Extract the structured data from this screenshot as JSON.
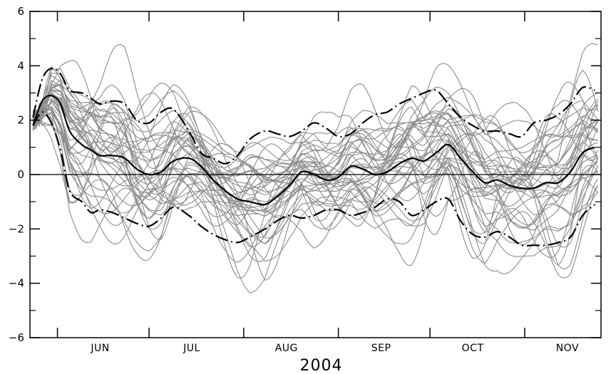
{
  "chart_data": {
    "type": "line",
    "title": "",
    "xlabel": "2004",
    "ylabel": "",
    "xlim": [
      "2004-05-23",
      "2004-11-26"
    ],
    "ylim": [
      -6,
      6
    ],
    "yticks": [
      -6,
      -4,
      -2,
      0,
      2,
      4,
      6
    ],
    "ytick_labels": [
      "−6",
      "−4",
      "−2",
      "0",
      "2",
      "4",
      "6"
    ],
    "month_ticks": [
      "2004-06-01",
      "2004-07-01",
      "2004-08-01",
      "2004-09-01",
      "2004-10-01",
      "2004-11-01"
    ],
    "month_labels": [
      {
        "label": "JUN",
        "date": "2004-06-15"
      },
      {
        "label": "JUL",
        "date": "2004-07-15"
      },
      {
        "label": "AUG",
        "date": "2004-08-15"
      },
      {
        "label": "SEP",
        "date": "2004-09-15"
      },
      {
        "label": "OCT",
        "date": "2004-10-15"
      },
      {
        "label": "NOV",
        "date": "2004-11-15"
      }
    ],
    "zero_line": 0,
    "grid": false,
    "legend": "none",
    "colors": {
      "ensemble": "#8c8c8c",
      "summary": "#000000"
    },
    "series": [
      {
        "role": "upper-band",
        "style": "dash-dot",
        "x": [
          "2004-05-24",
          "2004-05-27",
          "2004-05-30",
          "2004-06-02",
          "2004-06-05",
          "2004-06-09",
          "2004-06-12",
          "2004-06-15",
          "2004-06-19",
          "2004-06-23",
          "2004-06-27",
          "2004-07-01",
          "2004-07-05",
          "2004-07-09",
          "2004-07-14",
          "2004-07-18",
          "2004-07-22",
          "2004-07-26",
          "2004-07-30",
          "2004-08-03",
          "2004-08-08",
          "2004-08-12",
          "2004-08-16",
          "2004-08-20",
          "2004-08-24",
          "2004-08-28",
          "2004-09-01",
          "2004-09-05",
          "2004-09-09",
          "2004-09-13",
          "2004-09-17",
          "2004-09-21",
          "2004-09-25",
          "2004-09-29",
          "2004-10-03",
          "2004-10-07",
          "2004-10-11",
          "2004-10-15",
          "2004-10-19",
          "2004-10-23",
          "2004-10-27",
          "2004-10-31",
          "2004-11-04",
          "2004-11-08",
          "2004-11-12",
          "2004-11-16",
          "2004-11-20",
          "2004-11-24"
        ],
        "y": [
          2.1,
          3.5,
          3.9,
          3.7,
          3.1,
          3.0,
          2.8,
          2.6,
          2.7,
          2.6,
          2.0,
          1.9,
          2.3,
          2.4,
          1.6,
          0.8,
          0.6,
          0.4,
          0.7,
          1.3,
          1.6,
          1.5,
          1.4,
          1.6,
          1.9,
          1.7,
          1.4,
          1.5,
          1.9,
          2.2,
          2.3,
          2.6,
          2.8,
          3.0,
          3.1,
          2.6,
          2.1,
          1.8,
          1.6,
          1.6,
          1.5,
          1.4,
          1.9,
          2.0,
          2.2,
          2.6,
          3.2,
          3.1
        ]
      },
      {
        "role": "median",
        "style": "solid",
        "x": [
          "2004-05-24",
          "2004-05-27",
          "2004-05-30",
          "2004-06-02",
          "2004-06-05",
          "2004-06-09",
          "2004-06-12",
          "2004-06-15",
          "2004-06-19",
          "2004-06-23",
          "2004-06-27",
          "2004-07-01",
          "2004-07-05",
          "2004-07-09",
          "2004-07-14",
          "2004-07-18",
          "2004-07-22",
          "2004-07-26",
          "2004-07-30",
          "2004-08-03",
          "2004-08-08",
          "2004-08-12",
          "2004-08-16",
          "2004-08-20",
          "2004-08-24",
          "2004-08-28",
          "2004-09-01",
          "2004-09-05",
          "2004-09-09",
          "2004-09-13",
          "2004-09-17",
          "2004-09-21",
          "2004-09-25",
          "2004-09-29",
          "2004-10-03",
          "2004-10-07",
          "2004-10-11",
          "2004-10-15",
          "2004-10-19",
          "2004-10-23",
          "2004-10-27",
          "2004-10-31",
          "2004-11-04",
          "2004-11-08",
          "2004-11-12",
          "2004-11-16",
          "2004-11-20",
          "2004-11-24"
        ],
        "y": [
          1.8,
          2.7,
          2.9,
          2.6,
          1.6,
          1.1,
          0.9,
          0.7,
          0.7,
          0.6,
          0.2,
          0.0,
          0.1,
          0.5,
          0.6,
          0.3,
          -0.2,
          -0.6,
          -0.9,
          -1.0,
          -1.1,
          -0.8,
          -0.4,
          0.1,
          0.0,
          -0.2,
          -0.1,
          0.3,
          0.2,
          0.0,
          0.1,
          0.4,
          0.6,
          0.5,
          0.8,
          1.1,
          0.6,
          0.1,
          -0.3,
          -0.2,
          -0.4,
          -0.5,
          -0.5,
          -0.3,
          -0.3,
          0.1,
          0.8,
          1.0
        ]
      },
      {
        "role": "lower-band",
        "style": "dash-dot",
        "x": [
          "2004-05-24",
          "2004-05-27",
          "2004-05-30",
          "2004-06-02",
          "2004-06-05",
          "2004-06-09",
          "2004-06-12",
          "2004-06-15",
          "2004-06-19",
          "2004-06-23",
          "2004-06-27",
          "2004-07-01",
          "2004-07-05",
          "2004-07-09",
          "2004-07-14",
          "2004-07-18",
          "2004-07-22",
          "2004-07-26",
          "2004-07-30",
          "2004-08-03",
          "2004-08-08",
          "2004-08-12",
          "2004-08-16",
          "2004-08-20",
          "2004-08-24",
          "2004-08-28",
          "2004-09-01",
          "2004-09-05",
          "2004-09-09",
          "2004-09-13",
          "2004-09-17",
          "2004-09-21",
          "2004-09-25",
          "2004-09-29",
          "2004-10-03",
          "2004-10-07",
          "2004-10-11",
          "2004-10-15",
          "2004-10-19",
          "2004-10-23",
          "2004-10-27",
          "2004-10-31",
          "2004-11-04",
          "2004-11-08",
          "2004-11-12",
          "2004-11-16",
          "2004-11-20",
          "2004-11-24"
        ],
        "y": [
          1.8,
          2.3,
          1.9,
          0.9,
          -0.6,
          -1.0,
          -1.4,
          -1.3,
          -1.4,
          -1.6,
          -1.8,
          -1.9,
          -1.6,
          -1.2,
          -1.5,
          -1.9,
          -2.2,
          -2.4,
          -2.5,
          -2.3,
          -2.0,
          -1.7,
          -1.5,
          -1.6,
          -1.5,
          -1.3,
          -1.3,
          -1.5,
          -1.4,
          -1.2,
          -0.9,
          -1.0,
          -1.5,
          -1.3,
          -1.0,
          -0.9,
          -1.7,
          -2.2,
          -2.3,
          -2.1,
          -2.3,
          -2.6,
          -2.6,
          -2.6,
          -2.5,
          -2.3,
          -1.5,
          -1.1
        ]
      }
    ]
  }
}
